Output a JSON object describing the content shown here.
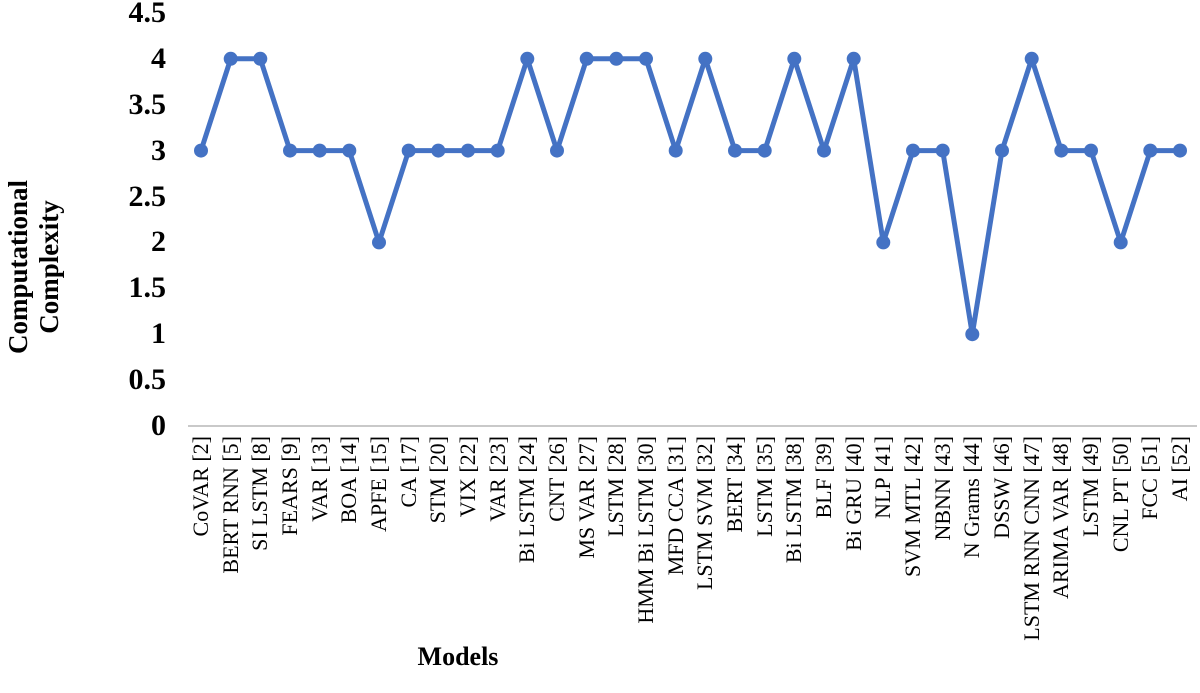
{
  "chart_data": {
    "type": "line",
    "title": "",
    "xlabel": "Models",
    "ylabel": "Computational Complexity",
    "ylabel_lines": [
      "Computational",
      "Complexity"
    ],
    "categories": [
      "CoVAR [2]",
      "BERT RNN [5]",
      "SI LSTM [8]",
      "FEARS [9]",
      "VAR [13]",
      "BOA [14]",
      "APFE [15]",
      "CA [17]",
      "STM [20]",
      "VIX [22]",
      "VAR [23]",
      "Bi LSTM [24]",
      "CNT [26]",
      "MS VAR [27]",
      "LSTM [28]",
      "HMM Bi LSTM [30]",
      "MFD CCA [31]",
      "LSTM SVM [32]",
      "BERT [34]",
      "LSTM [35]",
      "Bi LSTM [38]",
      "BLF [39]",
      "Bi GRU [40]",
      "NLP [41]",
      "SVM MTL [42]",
      "NBNN [43]",
      "N Grams [44]",
      "DSSW [46]",
      "LSTM RNN CNN [47]",
      "ARIMA VAR [48]",
      "LSTM [49]",
      "CNL PT [50]",
      "FCC [51]",
      "AI [52]"
    ],
    "values": [
      3,
      4,
      4,
      3,
      3,
      3,
      2,
      3,
      3,
      3,
      3,
      4,
      3,
      4,
      4,
      4,
      3,
      4,
      3,
      3,
      4,
      3,
      4,
      2,
      3,
      3,
      1,
      3,
      4,
      3,
      3,
      2,
      3,
      3
    ],
    "yticks": [
      "0",
      "0.5",
      "1",
      "1.5",
      "2",
      "2.5",
      "3",
      "3.5",
      "4",
      "4.5"
    ],
    "ylim": [
      0,
      4.5
    ],
    "grid": false,
    "legend": "none",
    "line_color": "#4472C4",
    "marker": "circle",
    "background": "#FFFFFF",
    "axis_line_color": "#C9C9C9",
    "text_color": "#000000"
  }
}
